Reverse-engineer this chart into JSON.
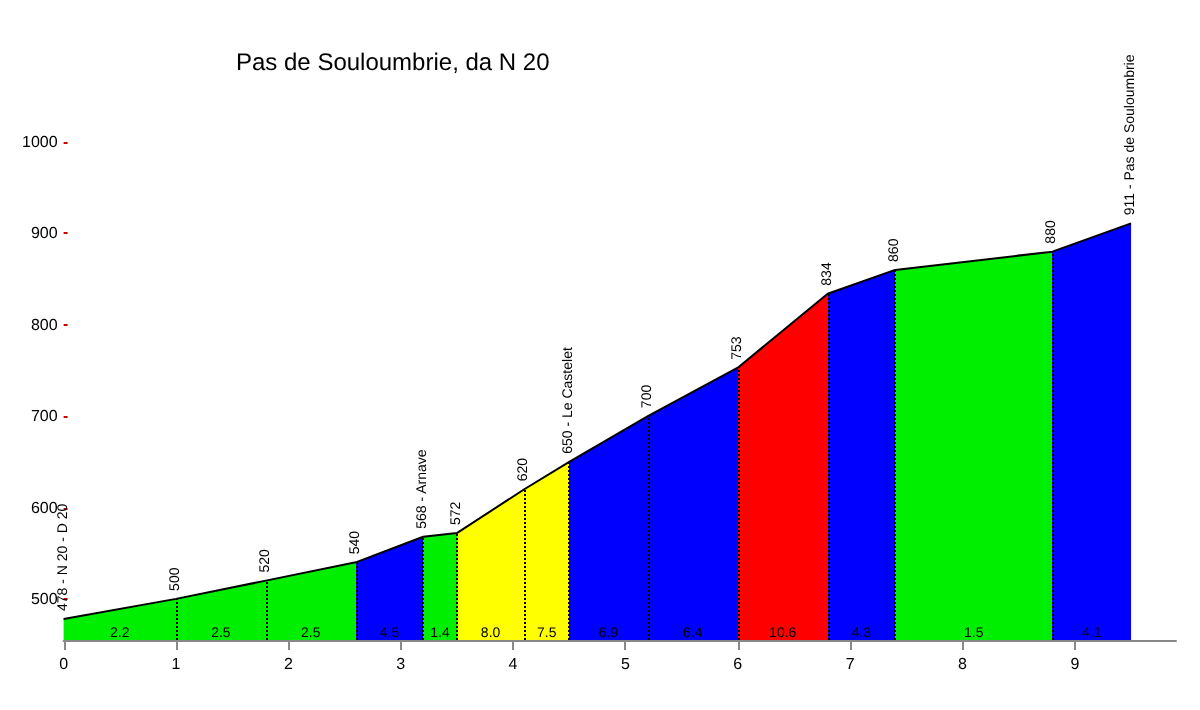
{
  "chart_data": {
    "type": "area",
    "title": "Pas de Souloumbrie, da N 20",
    "series": [
      {
        "color": "#000000",
        "x": [
          0,
          1.0,
          1.8,
          2.6,
          3.2,
          3.5,
          4.1,
          4.5,
          5.2,
          6.0,
          6.8,
          7.4,
          8.8,
          9.5
        ],
        "values": [
          478,
          500,
          520,
          540,
          568,
          572,
          620,
          650,
          700,
          753,
          834,
          860,
          880,
          911
        ],
        "value_labels": [
          "478 - N 20 - D 20",
          "500",
          "520",
          "540",
          "568 - Arnave",
          "572",
          "620",
          "650 - Le Castelet",
          "700",
          "753",
          "834",
          "860",
          "880",
          "911 - Pas de Souloumbrie"
        ],
        "colors": [
          "#00ee00",
          "#00ee00",
          "#00ee00",
          "#0000ff",
          "#00ee00",
          "#ffff00",
          "#ffff00",
          "#0000ff",
          "#0000ff",
          "#ff0000",
          "#0000ff",
          "#00ee00",
          "#0000ff",
          null
        ]
      }
    ],
    "annotations": [
      {
        "text": "2.2",
        "x": 0.5,
        "y": 462
      },
      {
        "text": "2.5",
        "x": 1.4,
        "y": 462
      },
      {
        "text": "2.5",
        "x": 2.2,
        "y": 462
      },
      {
        "text": "4.5",
        "x": 2.9,
        "y": 462
      },
      {
        "text": "1.4",
        "x": 3.35,
        "y": 462
      },
      {
        "text": "8.0",
        "x": 3.8,
        "y": 462
      },
      {
        "text": "7.5",
        "x": 4.3,
        "y": 462
      },
      {
        "text": "6.9",
        "x": 4.85,
        "y": 462
      },
      {
        "text": "6.4",
        "x": 5.6,
        "y": 462
      },
      {
        "text": "10.6",
        "x": 6.4,
        "y": 462
      },
      {
        "text": "4.3",
        "x": 7.1,
        "y": 462
      },
      {
        "text": "1.5",
        "x": 8.1,
        "y": 462
      },
      {
        "text": "4.1",
        "x": 9.15,
        "y": 462
      }
    ],
    "xlim": [
      0,
      9.9
    ],
    "xticks": [
      0,
      1,
      2,
      3,
      4,
      5,
      6,
      7,
      8,
      9
    ],
    "ylim": [
      455,
      1000
    ],
    "yticks": [
      500,
      600,
      700,
      800,
      900,
      1000
    ],
    "grid": false,
    "line_style": "solid",
    "marker": "none"
  }
}
